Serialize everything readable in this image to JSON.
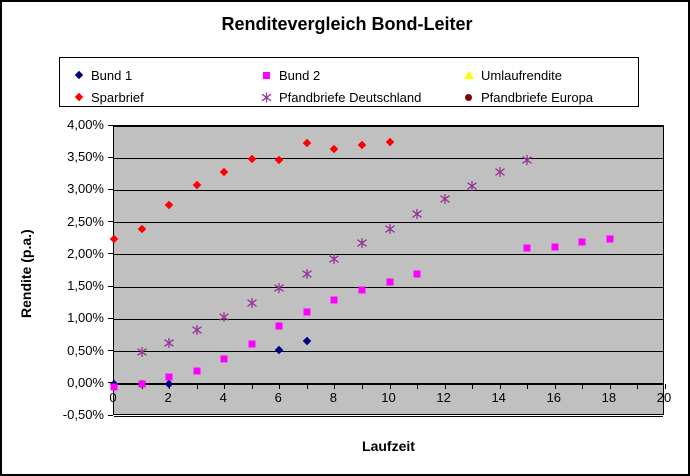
{
  "chart_data": {
    "type": "scatter",
    "title": "Renditevergleich Bond-Leiter",
    "xlabel": "Laufzeit",
    "ylabel": "Rendite (p.a.)",
    "xlim": [
      0,
      20
    ],
    "ylim": [
      -0.5,
      4.0
    ],
    "x_ticks": [
      0,
      2,
      4,
      6,
      8,
      10,
      12,
      14,
      16,
      18,
      20
    ],
    "x_minor_tick_step": 1,
    "y_ticks": [
      4.0,
      3.5,
      3.0,
      2.5,
      2.0,
      1.5,
      1.0,
      0.5,
      0.0,
      -0.5
    ],
    "y_tick_labels": [
      "4,00%",
      "3,50%",
      "3,00%",
      "2,50%",
      "2,00%",
      "1,50%",
      "1,00%",
      "0,50%",
      "0,00%",
      "-0,50%"
    ],
    "grid": true,
    "legend_position": "top",
    "plot_background": "#c0c0c0",
    "series": [
      {
        "name": "Bund 1",
        "marker": "diamond",
        "color": "#000080",
        "points": [
          [
            0,
            0.0
          ],
          [
            1,
            0.0
          ],
          [
            2,
            0.0
          ],
          [
            6,
            0.52
          ],
          [
            7,
            0.67
          ]
        ]
      },
      {
        "name": "Bund 2",
        "marker": "square",
        "color": "#ff00ff",
        "points": [
          [
            0,
            -0.05
          ],
          [
            1,
            0.0
          ],
          [
            2,
            0.1
          ],
          [
            3,
            0.2
          ],
          [
            4,
            0.38
          ],
          [
            5,
            0.62
          ],
          [
            6,
            0.9
          ],
          [
            7,
            1.12
          ],
          [
            8,
            1.3
          ],
          [
            9,
            1.45
          ],
          [
            10,
            1.58
          ],
          [
            11,
            1.7
          ],
          [
            15,
            2.1
          ],
          [
            16,
            2.13
          ],
          [
            17,
            2.2
          ],
          [
            18,
            2.25
          ]
        ]
      },
      {
        "name": "Umlaufrendite",
        "marker": "triangle",
        "color": "#ffff00",
        "points": []
      },
      {
        "name": "Sparbrief",
        "marker": "diamond",
        "color": "#ff0000",
        "points": [
          [
            0,
            2.25
          ],
          [
            1,
            2.4
          ],
          [
            2,
            2.78
          ],
          [
            3,
            3.08
          ],
          [
            4,
            3.29
          ],
          [
            5,
            3.49
          ],
          [
            6,
            3.48
          ],
          [
            7,
            3.74
          ],
          [
            8,
            3.65
          ],
          [
            9,
            3.7
          ],
          [
            10,
            3.75
          ]
        ]
      },
      {
        "name": "Pfandbriefe Deutschland",
        "marker": "star",
        "color": "#993399",
        "points": [
          [
            1,
            0.5
          ],
          [
            2,
            0.63
          ],
          [
            3,
            0.83
          ],
          [
            4,
            1.03
          ],
          [
            5,
            1.25
          ],
          [
            6,
            1.48
          ],
          [
            7,
            1.71
          ],
          [
            8,
            1.93
          ],
          [
            9,
            2.19
          ],
          [
            10,
            2.4
          ],
          [
            11,
            2.64
          ],
          [
            12,
            2.87
          ],
          [
            13,
            3.07
          ],
          [
            14,
            3.28
          ],
          [
            15,
            3.48
          ]
        ]
      },
      {
        "name": "Pfandbriefe Europa",
        "marker": "circle",
        "color": "#800000",
        "points": []
      }
    ]
  }
}
